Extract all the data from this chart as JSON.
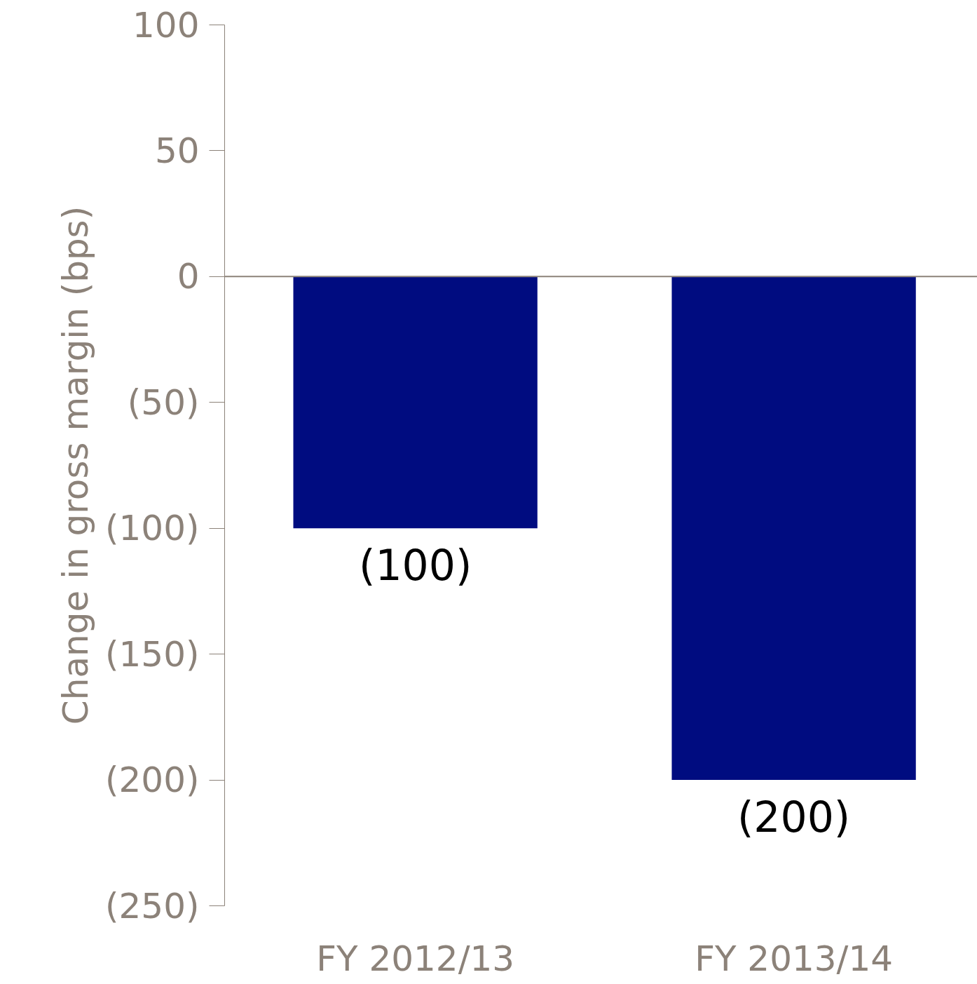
{
  "chart_data": {
    "type": "bar",
    "ylabel": "Change in gross margin (bps)",
    "categories": [
      "FY 2012/13",
      "FY 2013/14"
    ],
    "values": [
      -100,
      -200
    ],
    "color": "#000c80",
    "value_labels": [
      "(100)",
      "(200)"
    ],
    "ylim": [
      -250,
      100
    ],
    "yticks": [
      100,
      50,
      0,
      {
        "value": -50,
        "label": "(50)"
      },
      {
        "value": -100,
        "label": "(100)"
      },
      {
        "value": -150,
        "label": "(150)"
      },
      {
        "value": -200,
        "label": "(200)"
      },
      {
        "value": -250,
        "label": "(250)"
      }
    ]
  }
}
